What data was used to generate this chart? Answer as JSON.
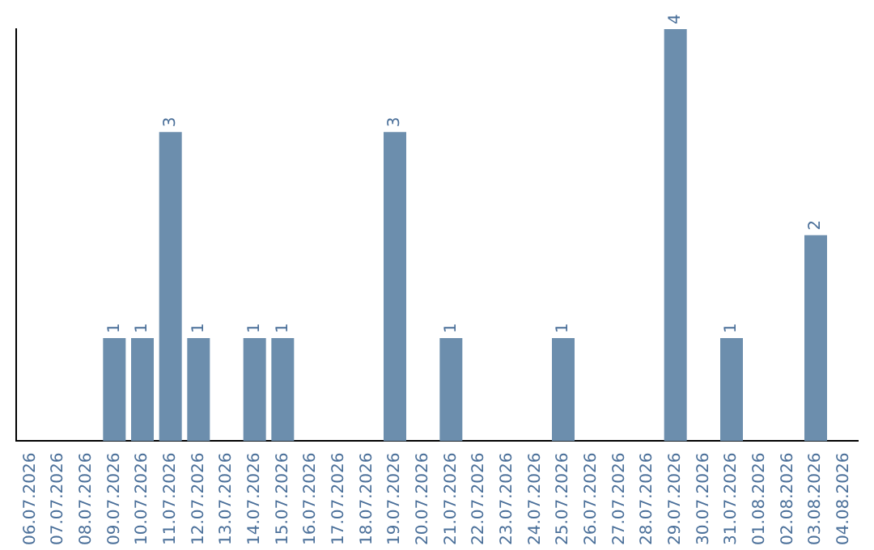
{
  "chart_data": {
    "type": "bar",
    "categories": [
      "06.07.2026",
      "07.07.2026",
      "08.07.2026",
      "09.07.2026",
      "10.07.2026",
      "11.07.2026",
      "12.07.2026",
      "13.07.2026",
      "14.07.2026",
      "15.07.2026",
      "16.07.2026",
      "17.07.2026",
      "18.07.2026",
      "19.07.2026",
      "20.07.2026",
      "21.07.2026",
      "22.07.2026",
      "23.07.2026",
      "24.07.2026",
      "25.07.2026",
      "26.07.2026",
      "27.07.2026",
      "28.07.2026",
      "29.07.2026",
      "30.07.2026",
      "31.07.2026",
      "01.08.2026",
      "02.08.2026",
      "03.08.2026",
      "04.08.2026"
    ],
    "values": [
      0,
      0,
      0,
      1,
      1,
      3,
      1,
      0,
      1,
      1,
      0,
      0,
      0,
      3,
      0,
      1,
      0,
      0,
      0,
      1,
      0,
      0,
      0,
      4,
      0,
      1,
      0,
      0,
      2,
      0
    ],
    "value_labels": [
      null,
      null,
      null,
      "1",
      "1",
      "3",
      "1",
      null,
      "1",
      "1",
      null,
      null,
      null,
      "3",
      null,
      "1",
      null,
      null,
      null,
      "1",
      null,
      null,
      null,
      "4",
      null,
      "1",
      null,
      null,
      "2",
      null
    ],
    "color": "#6c8ead",
    "grid": false,
    "legend": false,
    "tick_labels": "x"
  }
}
